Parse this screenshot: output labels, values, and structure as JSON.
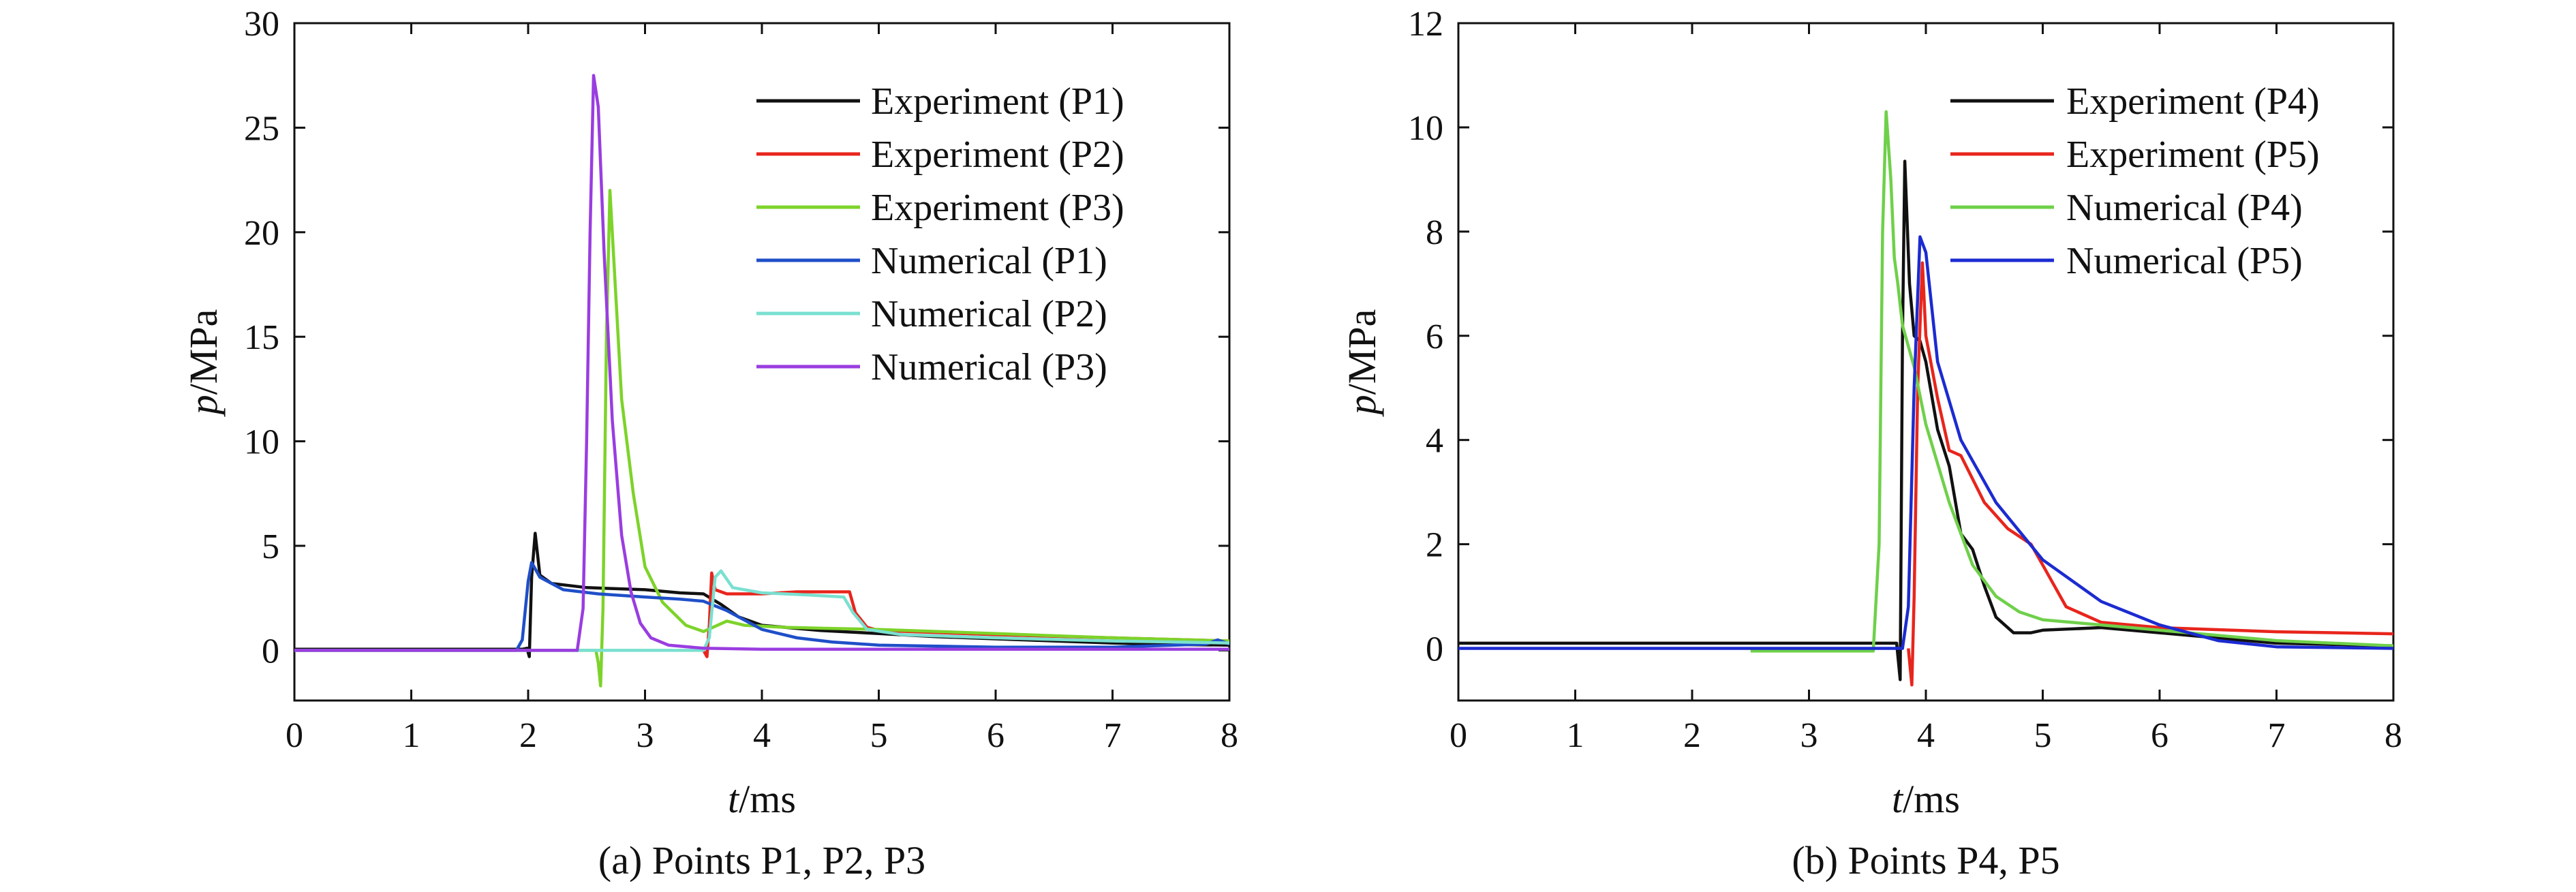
{
  "chart_data": [
    {
      "type": "line",
      "caption": "(a) Points P1, P2, P3",
      "xlabel": {
        "var": "t",
        "unit": "/ms"
      },
      "ylabel": {
        "var": "p",
        "unit": "/MPa"
      },
      "xlim": [
        0,
        8
      ],
      "ylim": [
        -2.4,
        30
      ],
      "xticks": [
        0,
        1,
        2,
        3,
        4,
        5,
        6,
        7,
        8
      ],
      "yticks": [
        0,
        5,
        10,
        15,
        20,
        25,
        30
      ],
      "grid": false,
      "legend_position": "top-right",
      "series": [
        {
          "name": "Experiment (P1)",
          "color": "#111111",
          "points": [
            [
              0,
              0.05
            ],
            [
              1.95,
              0.05
            ],
            [
              1.99,
              0.1
            ],
            [
              2.01,
              -0.3
            ],
            [
              2.03,
              3.5
            ],
            [
              2.06,
              5.6
            ],
            [
              2.1,
              3.6
            ],
            [
              2.2,
              3.2
            ],
            [
              2.5,
              3.0
            ],
            [
              3.0,
              2.9
            ],
            [
              3.3,
              2.75
            ],
            [
              3.5,
              2.7
            ],
            [
              3.65,
              2.2
            ],
            [
              3.8,
              1.6
            ],
            [
              4.0,
              1.2
            ],
            [
              4.5,
              0.95
            ],
            [
              5.0,
              0.8
            ],
            [
              5.5,
              0.65
            ],
            [
              6,
              0.55
            ],
            [
              6.5,
              0.45
            ],
            [
              7,
              0.35
            ],
            [
              7.5,
              0.28
            ],
            [
              8,
              0.25
            ]
          ]
        },
        {
          "name": "Experiment (P2)",
          "color": "#e8251c",
          "points": [
            [
              3.5,
              0.0
            ],
            [
              3.53,
              -0.3
            ],
            [
              3.55,
              1.2
            ],
            [
              3.57,
              3.7
            ],
            [
              3.6,
              2.9
            ],
            [
              3.7,
              2.7
            ],
            [
              4.0,
              2.7
            ],
            [
              4.3,
              2.8
            ],
            [
              4.5,
              2.8
            ],
            [
              4.75,
              2.8
            ],
            [
              4.8,
              1.8
            ],
            [
              4.9,
              1.1
            ],
            [
              5.0,
              0.95
            ],
            [
              5.5,
              0.85
            ],
            [
              6,
              0.75
            ],
            [
              7,
              0.6
            ],
            [
              8,
              0.45
            ]
          ]
        },
        {
          "name": "Experiment (P3)",
          "color": "#7dd32a",
          "points": [
            [
              0,
              0.0
            ],
            [
              2.58,
              0.0
            ],
            [
              2.6,
              -0.6
            ],
            [
              2.62,
              -1.7
            ],
            [
              2.64,
              2.0
            ],
            [
              2.67,
              15.0
            ],
            [
              2.7,
              22.0
            ],
            [
              2.75,
              17.0
            ],
            [
              2.8,
              12.0
            ],
            [
              2.9,
              7.5
            ],
            [
              3.0,
              4.0
            ],
            [
              3.15,
              2.3
            ],
            [
              3.35,
              1.2
            ],
            [
              3.5,
              0.9
            ],
            [
              3.7,
              1.4
            ],
            [
              3.85,
              1.2
            ],
            [
              4.2,
              1.1
            ],
            [
              4.6,
              1.05
            ],
            [
              5,
              1.0
            ],
            [
              6,
              0.8
            ],
            [
              7,
              0.6
            ],
            [
              8,
              0.45
            ]
          ]
        },
        {
          "name": "Numerical (P1)",
          "color": "#1f4fc8",
          "points": [
            [
              0,
              0.0
            ],
            [
              1.9,
              0.0
            ],
            [
              1.95,
              0.5
            ],
            [
              2.0,
              3.3
            ],
            [
              2.03,
              4.2
            ],
            [
              2.1,
              3.5
            ],
            [
              2.3,
              2.9
            ],
            [
              2.6,
              2.7
            ],
            [
              3.0,
              2.55
            ],
            [
              3.3,
              2.45
            ],
            [
              3.5,
              2.35
            ],
            [
              3.7,
              1.9
            ],
            [
              4.0,
              1.0
            ],
            [
              4.3,
              0.6
            ],
            [
              4.6,
              0.4
            ],
            [
              5.0,
              0.25
            ],
            [
              5.5,
              0.2
            ],
            [
              6,
              0.15
            ],
            [
              7,
              0.15
            ],
            [
              7.8,
              0.3
            ],
            [
              7.9,
              0.5
            ],
            [
              8,
              0.3
            ]
          ]
        },
        {
          "name": "Numerical (P2)",
          "color": "#7ae0d0",
          "points": [
            [
              0,
              0.0
            ],
            [
              3.5,
              0.0
            ],
            [
              3.55,
              0.6
            ],
            [
              3.6,
              3.5
            ],
            [
              3.65,
              3.8
            ],
            [
              3.75,
              3.0
            ],
            [
              4.0,
              2.75
            ],
            [
              4.4,
              2.65
            ],
            [
              4.7,
              2.55
            ],
            [
              4.78,
              1.8
            ],
            [
              4.9,
              1.0
            ],
            [
              5.2,
              0.75
            ],
            [
              6,
              0.6
            ],
            [
              7,
              0.45
            ],
            [
              8,
              0.35
            ]
          ]
        },
        {
          "name": "Numerical (P3)",
          "color": "#9a3de0",
          "points": [
            [
              0,
              0.0
            ],
            [
              2.42,
              0.0
            ],
            [
              2.47,
              2.0
            ],
            [
              2.5,
              10.0
            ],
            [
              2.53,
              20.0
            ],
            [
              2.56,
              27.5
            ],
            [
              2.6,
              26.0
            ],
            [
              2.65,
              19.0
            ],
            [
              2.72,
              11.0
            ],
            [
              2.8,
              5.5
            ],
            [
              2.88,
              2.8
            ],
            [
              2.96,
              1.3
            ],
            [
              3.05,
              0.6
            ],
            [
              3.2,
              0.25
            ],
            [
              3.5,
              0.1
            ],
            [
              4,
              0.05
            ],
            [
              6,
              0.05
            ],
            [
              8,
              0.05
            ]
          ]
        }
      ]
    },
    {
      "type": "line",
      "caption": "(b) Points P4, P5",
      "xlabel": {
        "var": "t",
        "unit": "/ms"
      },
      "ylabel": {
        "var": "p",
        "unit": "/MPa"
      },
      "xlim": [
        0,
        8
      ],
      "ylim": [
        -1,
        12
      ],
      "xticks": [
        0,
        1,
        2,
        3,
        4,
        5,
        6,
        7,
        8
      ],
      "yticks": [
        0,
        2,
        4,
        6,
        8,
        10,
        12
      ],
      "grid": false,
      "legend_position": "top-right",
      "series": [
        {
          "name": "Experiment (P4)",
          "color": "#111111",
          "points": [
            [
              0,
              0.1
            ],
            [
              3.7,
              0.1
            ],
            [
              3.75,
              0.1
            ],
            [
              3.78,
              -0.6
            ],
            [
              3.8,
              6.0
            ],
            [
              3.82,
              9.35
            ],
            [
              3.86,
              7.0
            ],
            [
              3.9,
              6.0
            ],
            [
              3.95,
              5.9
            ],
            [
              4.0,
              5.5
            ],
            [
              4.1,
              4.2
            ],
            [
              4.2,
              3.5
            ],
            [
              4.3,
              2.2
            ],
            [
              4.4,
              1.9
            ],
            [
              4.5,
              1.2
            ],
            [
              4.6,
              0.6
            ],
            [
              4.75,
              0.3
            ],
            [
              4.9,
              0.3
            ],
            [
              5.0,
              0.35
            ],
            [
              5.5,
              0.4
            ],
            [
              6.0,
              0.3
            ],
            [
              7.0,
              0.1
            ],
            [
              8,
              0.05
            ]
          ]
        },
        {
          "name": "Experiment (P5)",
          "color": "#e8251c",
          "points": [
            [
              3.85,
              0.0
            ],
            [
              3.88,
              -0.7
            ],
            [
              3.9,
              1.0
            ],
            [
              3.93,
              5.0
            ],
            [
              3.97,
              7.4
            ],
            [
              4.0,
              6.0
            ],
            [
              4.1,
              4.8
            ],
            [
              4.2,
              3.8
            ],
            [
              4.3,
              3.7
            ],
            [
              4.5,
              2.8
            ],
            [
              4.7,
              2.3
            ],
            [
              4.9,
              2.0
            ],
            [
              5.0,
              1.6
            ],
            [
              5.2,
              0.8
            ],
            [
              5.5,
              0.5
            ],
            [
              6.0,
              0.4
            ],
            [
              7.0,
              0.32
            ],
            [
              8,
              0.28
            ]
          ]
        },
        {
          "name": "Numerical (P4)",
          "color": "#6fd04a",
          "points": [
            [
              2.5,
              -0.05
            ],
            [
              3.55,
              -0.05
            ],
            [
              3.6,
              2.0
            ],
            [
              3.63,
              8.0
            ],
            [
              3.66,
              10.3
            ],
            [
              3.7,
              9.0
            ],
            [
              3.73,
              7.5
            ],
            [
              3.76,
              7.0
            ],
            [
              3.8,
              6.2
            ],
            [
              3.9,
              5.4
            ],
            [
              4.0,
              4.3
            ],
            [
              4.2,
              2.8
            ],
            [
              4.4,
              1.6
            ],
            [
              4.6,
              1.0
            ],
            [
              4.8,
              0.7
            ],
            [
              5.0,
              0.55
            ],
            [
              5.5,
              0.45
            ],
            [
              6,
              0.35
            ],
            [
              7,
              0.15
            ],
            [
              8,
              0.05
            ]
          ]
        },
        {
          "name": "Numerical (P5)",
          "color": "#1c2bd0",
          "points": [
            [
              0,
              0.0
            ],
            [
              3.8,
              0.0
            ],
            [
              3.85,
              0.8
            ],
            [
              3.9,
              5.0
            ],
            [
              3.95,
              7.9
            ],
            [
              4.0,
              7.6
            ],
            [
              4.1,
              5.5
            ],
            [
              4.3,
              4.0
            ],
            [
              4.6,
              2.8
            ],
            [
              5.0,
              1.7
            ],
            [
              5.5,
              0.9
            ],
            [
              6.0,
              0.45
            ],
            [
              6.5,
              0.15
            ],
            [
              7,
              0.03
            ],
            [
              8,
              0.0
            ]
          ]
        }
      ]
    }
  ]
}
